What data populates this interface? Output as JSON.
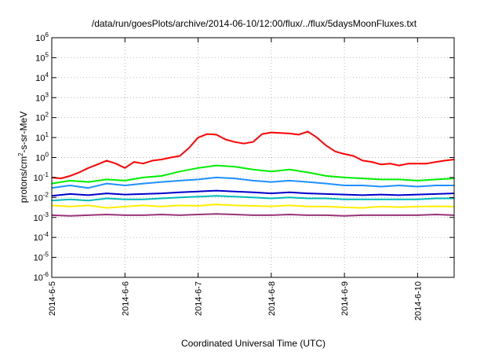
{
  "chart_data": {
    "type": "line",
    "title": "/data/run/goesPlots/archive/2014-06-10/12:00/flux/../flux/5daysMoonFluxes.txt",
    "xlabel": "Coordinated Universal Time (UTC)",
    "ylabel": {
      "base": "protons/cm",
      "sup": "2",
      "rest": "-s-sr-MeV"
    },
    "x_scale": "date",
    "xlim": [
      "2014-06-05",
      "2014-06-10T12:00"
    ],
    "x_ticks": [
      {
        "date": "2014-06-05",
        "label": "2014-6-5"
      },
      {
        "date": "2014-06-06",
        "label": "2014-6-6"
      },
      {
        "date": "2014-06-07",
        "label": "2014-6-7"
      },
      {
        "date": "2014-06-08",
        "label": "2014-6-8"
      },
      {
        "date": "2014-06-09",
        "label": "2014-6-9"
      },
      {
        "date": "2014-06-10",
        "label": "2014-6-10"
      }
    ],
    "y_scale": "log",
    "ylim": [
      1e-06,
      1000000.0
    ],
    "y_ticks": [
      {
        "value": 1e-06,
        "base": "10",
        "exp": "-6"
      },
      {
        "value": 1e-05,
        "base": "10",
        "exp": "-5"
      },
      {
        "value": 0.0001,
        "base": "10",
        "exp": "-4"
      },
      {
        "value": 0.001,
        "base": "10",
        "exp": "-3"
      },
      {
        "value": 0.01,
        "base": "10",
        "exp": "-2"
      },
      {
        "value": 0.1,
        "base": "10",
        "exp": "-1"
      },
      {
        "value": 1,
        "base": "10",
        "exp": "0"
      },
      {
        "value": 10,
        "base": "10",
        "exp": "1"
      },
      {
        "value": 100,
        "base": "10",
        "exp": "2"
      },
      {
        "value": 1000,
        "base": "10",
        "exp": "3"
      },
      {
        "value": 10000,
        "base": "10",
        "exp": "4"
      },
      {
        "value": 100000,
        "base": "10",
        "exp": "5"
      },
      {
        "value": 1000000,
        "base": "10",
        "exp": "6"
      }
    ],
    "grid": true,
    "legend": "none",
    "series": [
      {
        "color": "#ff0000",
        "x": [
          "2014-06-05T00:00",
          "2014-06-05T03:00",
          "2014-06-05T06:00",
          "2014-06-05T09:00",
          "2014-06-05T12:00",
          "2014-06-05T15:00",
          "2014-06-05T18:00",
          "2014-06-05T21:00",
          "2014-06-06T00:00",
          "2014-06-06T03:00",
          "2014-06-06T06:00",
          "2014-06-06T09:00",
          "2014-06-06T12:00",
          "2014-06-06T15:00",
          "2014-06-06T18:00",
          "2014-06-06T21:00",
          "2014-06-07T00:00",
          "2014-06-07T03:00",
          "2014-06-07T06:00",
          "2014-06-07T09:00",
          "2014-06-07T12:00",
          "2014-06-07T15:00",
          "2014-06-07T18:00",
          "2014-06-07T21:00",
          "2014-06-08T00:00",
          "2014-06-08T03:00",
          "2014-06-08T06:00",
          "2014-06-08T09:00",
          "2014-06-08T12:00",
          "2014-06-08T15:00",
          "2014-06-08T18:00",
          "2014-06-08T21:00",
          "2014-06-09T00:00",
          "2014-06-09T03:00",
          "2014-06-09T06:00",
          "2014-06-09T09:00",
          "2014-06-09T12:00",
          "2014-06-09T15:00",
          "2014-06-09T18:00",
          "2014-06-09T21:00",
          "2014-06-10T00:00",
          "2014-06-10T03:00",
          "2014-06-10T06:00",
          "2014-06-10T09:00",
          "2014-06-10T12:00"
        ],
        "values": [
          0.1,
          0.09,
          0.12,
          0.18,
          0.3,
          0.45,
          0.7,
          0.5,
          0.3,
          0.6,
          0.5,
          0.7,
          0.8,
          1.0,
          1.2,
          3.0,
          10,
          15,
          14,
          8,
          6,
          5,
          6,
          15,
          18,
          17,
          16,
          14,
          20,
          10,
          4,
          2,
          1.5,
          1.2,
          0.7,
          0.6,
          0.45,
          0.5,
          0.4,
          0.5,
          0.5,
          0.5,
          0.6,
          0.7,
          0.8
        ]
      },
      {
        "color": "#00ee00",
        "x": [
          "2014-06-05T00:00",
          "2014-06-05T06:00",
          "2014-06-05T12:00",
          "2014-06-05T18:00",
          "2014-06-06T00:00",
          "2014-06-06T06:00",
          "2014-06-06T12:00",
          "2014-06-06T18:00",
          "2014-06-07T00:00",
          "2014-06-07T06:00",
          "2014-06-07T12:00",
          "2014-06-07T18:00",
          "2014-06-08T00:00",
          "2014-06-08T06:00",
          "2014-06-08T12:00",
          "2014-06-08T18:00",
          "2014-06-09T00:00",
          "2014-06-09T06:00",
          "2014-06-09T12:00",
          "2014-06-09T18:00",
          "2014-06-10T00:00",
          "2014-06-10T06:00",
          "2014-06-10T12:00"
        ],
        "values": [
          0.05,
          0.07,
          0.06,
          0.08,
          0.07,
          0.1,
          0.12,
          0.2,
          0.3,
          0.4,
          0.35,
          0.25,
          0.2,
          0.25,
          0.18,
          0.12,
          0.1,
          0.09,
          0.08,
          0.08,
          0.07,
          0.08,
          0.09
        ]
      },
      {
        "color": "#1e90ff",
        "x": [
          "2014-06-05T00:00",
          "2014-06-05T06:00",
          "2014-06-05T12:00",
          "2014-06-05T18:00",
          "2014-06-06T00:00",
          "2014-06-06T06:00",
          "2014-06-06T12:00",
          "2014-06-06T18:00",
          "2014-06-07T00:00",
          "2014-06-07T06:00",
          "2014-06-07T12:00",
          "2014-06-07T18:00",
          "2014-06-08T00:00",
          "2014-06-08T06:00",
          "2014-06-08T12:00",
          "2014-06-08T18:00",
          "2014-06-09T00:00",
          "2014-06-09T06:00",
          "2014-06-09T12:00",
          "2014-06-09T18:00",
          "2014-06-10T00:00",
          "2014-06-10T06:00",
          "2014-06-10T12:00"
        ],
        "values": [
          0.03,
          0.04,
          0.03,
          0.05,
          0.04,
          0.05,
          0.06,
          0.07,
          0.08,
          0.1,
          0.09,
          0.07,
          0.06,
          0.07,
          0.06,
          0.05,
          0.04,
          0.04,
          0.035,
          0.04,
          0.035,
          0.04,
          0.04
        ]
      },
      {
        "color": "#0000cc",
        "x": [
          "2014-06-05T00:00",
          "2014-06-05T06:00",
          "2014-06-05T12:00",
          "2014-06-05T18:00",
          "2014-06-06T00:00",
          "2014-06-06T06:00",
          "2014-06-06T12:00",
          "2014-06-06T18:00",
          "2014-06-07T00:00",
          "2014-06-07T06:00",
          "2014-06-07T12:00",
          "2014-06-07T18:00",
          "2014-06-08T00:00",
          "2014-06-08T06:00",
          "2014-06-08T12:00",
          "2014-06-08T18:00",
          "2014-06-09T00:00",
          "2014-06-09T06:00",
          "2014-06-09T12:00",
          "2014-06-09T18:00",
          "2014-06-10T00:00",
          "2014-06-10T06:00",
          "2014-06-10T12:00"
        ],
        "values": [
          0.012,
          0.015,
          0.013,
          0.016,
          0.014,
          0.015,
          0.016,
          0.018,
          0.02,
          0.022,
          0.02,
          0.018,
          0.016,
          0.018,
          0.016,
          0.015,
          0.014,
          0.013,
          0.014,
          0.013,
          0.014,
          0.015,
          0.016
        ]
      },
      {
        "color": "#00bbbb",
        "x": [
          "2014-06-05T00:00",
          "2014-06-05T06:00",
          "2014-06-05T12:00",
          "2014-06-05T18:00",
          "2014-06-06T00:00",
          "2014-06-06T06:00",
          "2014-06-06T12:00",
          "2014-06-06T18:00",
          "2014-06-07T00:00",
          "2014-06-07T06:00",
          "2014-06-07T12:00",
          "2014-06-07T18:00",
          "2014-06-08T00:00",
          "2014-06-08T06:00",
          "2014-06-08T12:00",
          "2014-06-08T18:00",
          "2014-06-09T00:00",
          "2014-06-09T06:00",
          "2014-06-09T12:00",
          "2014-06-09T18:00",
          "2014-06-10T00:00",
          "2014-06-10T06:00",
          "2014-06-10T12:00"
        ],
        "values": [
          0.007,
          0.008,
          0.007,
          0.009,
          0.008,
          0.008,
          0.009,
          0.01,
          0.011,
          0.012,
          0.011,
          0.01,
          0.009,
          0.01,
          0.009,
          0.009,
          0.008,
          0.008,
          0.008,
          0.008,
          0.008,
          0.009,
          0.009
        ]
      },
      {
        "color": "#ffee00",
        "x": [
          "2014-06-05T00:00",
          "2014-06-05T06:00",
          "2014-06-05T12:00",
          "2014-06-05T18:00",
          "2014-06-06T00:00",
          "2014-06-06T06:00",
          "2014-06-06T12:00",
          "2014-06-06T18:00",
          "2014-06-07T00:00",
          "2014-06-07T06:00",
          "2014-06-07T12:00",
          "2014-06-07T18:00",
          "2014-06-08T00:00",
          "2014-06-08T06:00",
          "2014-06-08T12:00",
          "2014-06-08T18:00",
          "2014-06-09T00:00",
          "2014-06-09T06:00",
          "2014-06-09T12:00",
          "2014-06-09T18:00",
          "2014-06-10T00:00",
          "2014-06-10T06:00",
          "2014-06-10T12:00"
        ],
        "values": [
          0.004,
          0.0035,
          0.004,
          0.003,
          0.0035,
          0.004,
          0.0035,
          0.004,
          0.0038,
          0.0045,
          0.004,
          0.0038,
          0.0036,
          0.004,
          0.0035,
          0.0035,
          0.0032,
          0.003,
          0.0035,
          0.0033,
          0.0035,
          0.0036,
          0.0035
        ]
      },
      {
        "color": "#993377",
        "x": [
          "2014-06-05T00:00",
          "2014-06-05T06:00",
          "2014-06-05T12:00",
          "2014-06-05T18:00",
          "2014-06-06T00:00",
          "2014-06-06T06:00",
          "2014-06-06T12:00",
          "2014-06-06T18:00",
          "2014-06-07T00:00",
          "2014-06-07T06:00",
          "2014-06-07T12:00",
          "2014-06-07T18:00",
          "2014-06-08T00:00",
          "2014-06-08T06:00",
          "2014-06-08T12:00",
          "2014-06-08T18:00",
          "2014-06-09T00:00",
          "2014-06-09T06:00",
          "2014-06-09T12:00",
          "2014-06-09T18:00",
          "2014-06-10T00:00",
          "2014-06-10T06:00",
          "2014-06-10T12:00"
        ],
        "values": [
          0.0013,
          0.0012,
          0.0013,
          0.0014,
          0.0013,
          0.0013,
          0.0014,
          0.0013,
          0.0014,
          0.0015,
          0.0014,
          0.0013,
          0.0013,
          0.0014,
          0.0013,
          0.0013,
          0.0012,
          0.0013,
          0.0013,
          0.0013,
          0.0013,
          0.0014,
          0.0013
        ]
      }
    ]
  }
}
